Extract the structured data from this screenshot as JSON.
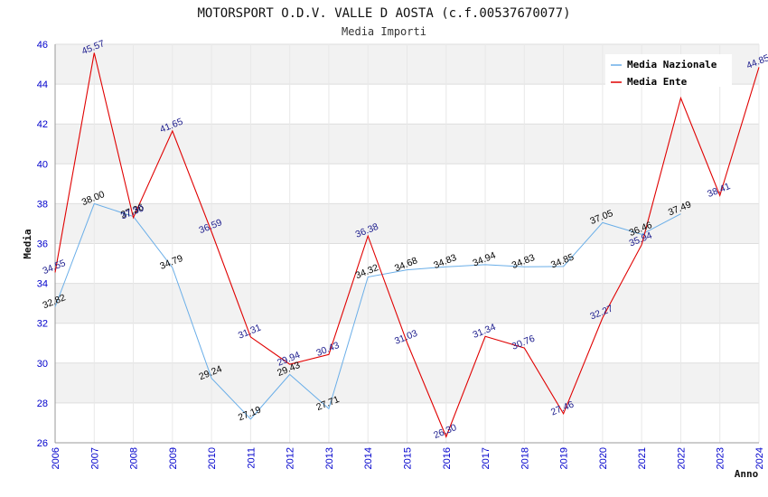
{
  "chart_data": {
    "type": "line",
    "title": "MOTORSPORT O.D.V. VALLE D AOSTA (c.f.00537670077)",
    "subtitle": "Media Importi",
    "ylabel": "Media",
    "xlabel": "Anno",
    "ylim": [
      26,
      46
    ],
    "yticks": [
      26,
      28,
      30,
      32,
      34,
      36,
      38,
      40,
      42,
      44,
      46
    ],
    "x": [
      2006,
      2007,
      2008,
      2009,
      2010,
      2011,
      2012,
      2013,
      2014,
      2015,
      2016,
      2017,
      2018,
      2019,
      2020,
      2021,
      2022,
      2023,
      2024
    ],
    "legend_position": "top-right",
    "series": [
      {
        "name": "Media Nazionale",
        "color": "#6aaee8",
        "values": [
          32.82,
          38.0,
          37.36,
          34.79,
          29.24,
          27.19,
          29.43,
          27.71,
          34.32,
          34.68,
          34.83,
          34.94,
          34.83,
          34.85,
          37.05,
          36.46,
          37.49,
          null,
          null
        ],
        "labels": [
          "32.82",
          "38.00",
          "37.36",
          "34.79",
          "29.24",
          "27.19",
          "29.43",
          "27.71",
          "34.32",
          "34.68",
          "34.83",
          "34.94",
          "34.83",
          "34.85",
          "37.05",
          "36.46",
          "37.49",
          null,
          null
        ]
      },
      {
        "name": "Media Ente",
        "color": "#e00000",
        "values": [
          34.55,
          45.57,
          37.3,
          41.65,
          36.59,
          31.31,
          29.94,
          30.43,
          36.38,
          31.03,
          26.3,
          31.34,
          30.76,
          27.46,
          32.27,
          35.94,
          43.3,
          38.41,
          44.85
        ],
        "labels": [
          "34.55",
          "45.57",
          "37.30",
          "41.65",
          "36.59",
          "31.31",
          "29.94",
          "30.43",
          "36.38",
          "31.03",
          "26.30",
          "31.34",
          "30.76",
          "27.46",
          "32.27",
          "35.94",
          null,
          "38.41",
          "44.85"
        ]
      }
    ]
  }
}
